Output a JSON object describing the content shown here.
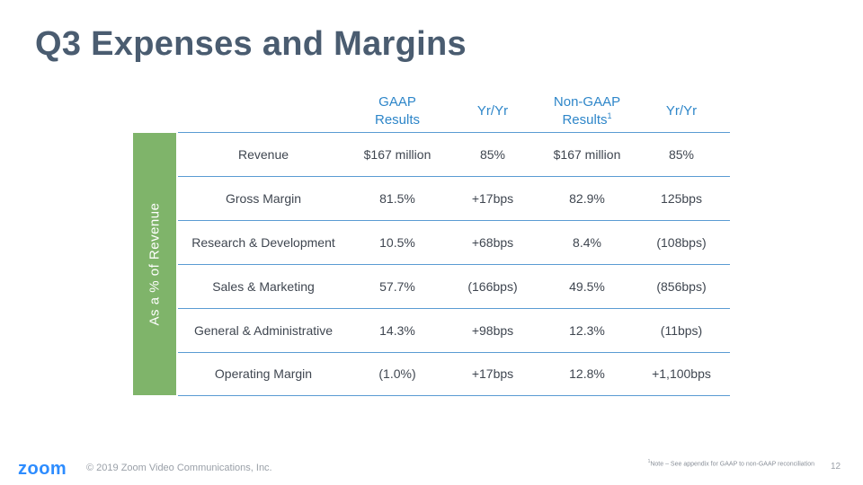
{
  "title": "Q3 Expenses and Margins",
  "headers": {
    "gaap_line1": "GAAP",
    "gaap_line2": "Results",
    "yoy1": "Yr/Yr",
    "nongaap_line1": "Non-GAAP",
    "nongaap_line2": "Results",
    "nongaap_sup": "1",
    "yoy2": "Yr/Yr"
  },
  "side_label": "As a % of Revenue",
  "rows": [
    {
      "label": "Revenue",
      "gaap": "$167 million",
      "gaap_yoy": "85%",
      "nongaap": "$167 million",
      "nongaap_yoy": "85%"
    },
    {
      "label": "Gross Margin",
      "gaap": "81.5%",
      "gaap_yoy": "+17bps",
      "nongaap": "82.9%",
      "nongaap_yoy": "125bps"
    },
    {
      "label": "Research & Development",
      "gaap": "10.5%",
      "gaap_yoy": "+68bps",
      "nongaap": "8.4%",
      "nongaap_yoy": "(108bps)"
    },
    {
      "label": "Sales & Marketing",
      "gaap": "57.7%",
      "gaap_yoy": "(166bps)",
      "nongaap": "49.5%",
      "nongaap_yoy": "(856bps)"
    },
    {
      "label": "General & Administrative",
      "gaap": "14.3%",
      "gaap_yoy": "+98bps",
      "nongaap": "12.3%",
      "nongaap_yoy": "(11bps)"
    },
    {
      "label": "Operating Margin",
      "gaap": "(1.0%)",
      "gaap_yoy": "+17bps",
      "nongaap": "12.8%",
      "nongaap_yoy": "+1,100bps"
    }
  ],
  "footer": {
    "logo": "zoom",
    "copyright": "© 2019 Zoom Video Communications, Inc.",
    "footnote_sup": "1",
    "footnote_text": "Note – See  appendix for GAAP to non-GAAP reconciliation",
    "page_number": "12"
  },
  "colors": {
    "title": "#4a5c70",
    "header": "#2e86c9",
    "side_bar": "#7fb46a",
    "row_line": "#5a9bd3",
    "brand": "#2d8cff"
  }
}
